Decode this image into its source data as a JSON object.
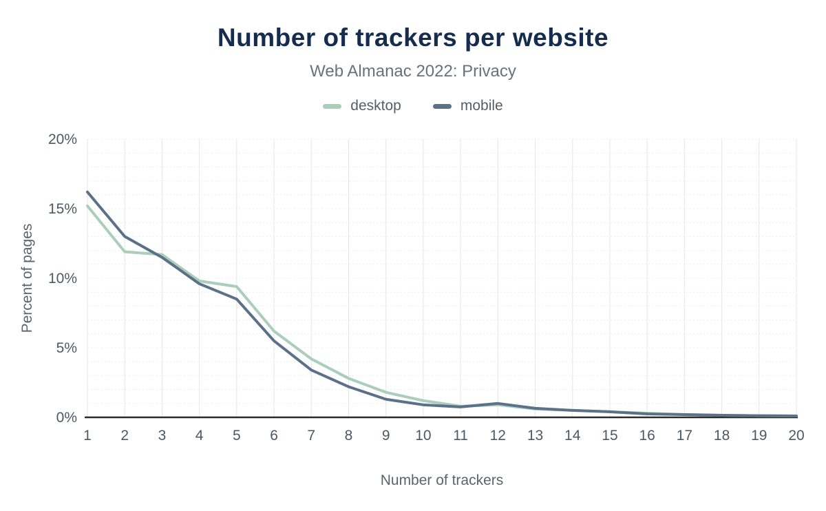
{
  "header": {
    "title": "Number of trackers per website",
    "subtitle": "Web Almanac 2022: Privacy"
  },
  "chart_data": {
    "type": "line",
    "title": "Number of trackers per website",
    "subtitle": "Web Almanac 2022: Privacy",
    "xlabel": "Number of trackers",
    "ylabel": "Percent of pages",
    "x": [
      "1",
      "2",
      "3",
      "4",
      "5",
      "6",
      "7",
      "8",
      "9",
      "10",
      "11",
      "12",
      "13",
      "14",
      "15",
      "16",
      "17",
      "18",
      "19",
      "20"
    ],
    "ylim": [
      0,
      20
    ],
    "yticks": [
      {
        "v": 0,
        "label": "0%"
      },
      {
        "v": 5,
        "label": "5%"
      },
      {
        "v": 10,
        "label": "10%"
      },
      {
        "v": 15,
        "label": "15%"
      },
      {
        "v": 20,
        "label": "20%"
      }
    ],
    "grid": {
      "vertical": true,
      "horizontal_minor_step": 1
    },
    "legend_position": "top",
    "series": [
      {
        "name": "desktop",
        "color": "#a9ceba",
        "values": [
          15.2,
          11.9,
          11.7,
          9.8,
          9.4,
          6.2,
          4.2,
          2.8,
          1.8,
          1.2,
          0.8,
          0.9,
          0.6,
          0.5,
          0.4,
          0.3,
          0.2,
          0.15,
          0.12,
          0.1
        ]
      },
      {
        "name": "mobile",
        "color": "#5b7089",
        "values": [
          16.2,
          13.0,
          11.5,
          9.6,
          8.5,
          5.5,
          3.4,
          2.2,
          1.3,
          0.9,
          0.75,
          1.0,
          0.65,
          0.5,
          0.4,
          0.25,
          0.2,
          0.15,
          0.12,
          0.1
        ]
      }
    ]
  }
}
